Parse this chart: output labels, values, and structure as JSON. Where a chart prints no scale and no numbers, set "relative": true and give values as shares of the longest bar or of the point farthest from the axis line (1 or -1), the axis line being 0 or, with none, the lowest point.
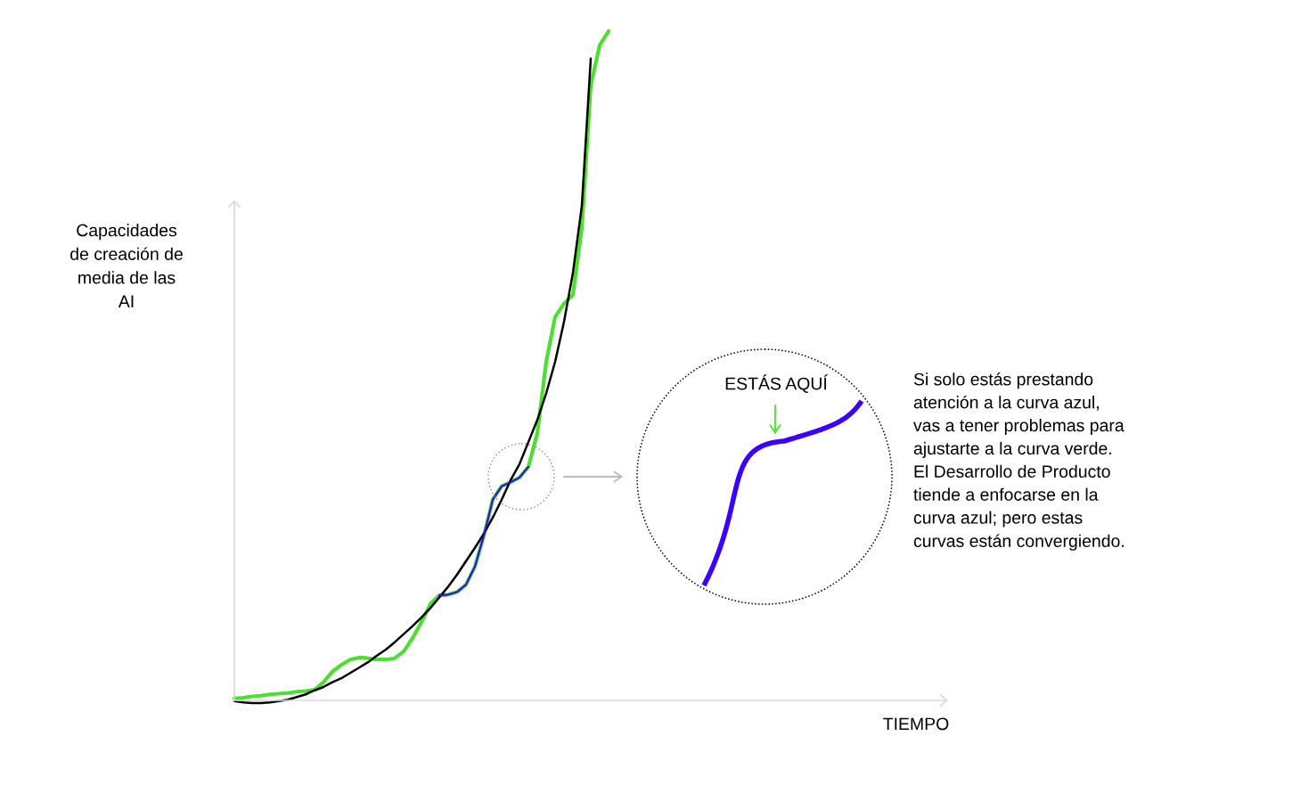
{
  "chart_data": {
    "type": "line",
    "relative": true,
    "ylabel": "Capacidades\nde creación de\nmedia de las\nAI",
    "xlabel": "TIEMPO",
    "annotations": [
      "ESTÁS AQUÍ",
      "Si solo estás prestando\natención a la curva azul,\nvas a tener problemas para\najustarte a la curva verde.\nEl Desarrollo de Producto\ntiende a enfocarse en la\ncurva azul; pero estas\ncurvas están convergiendo."
    ],
    "categories": [
      null,
      null,
      null,
      null,
      null,
      null,
      null,
      null,
      null,
      null,
      null,
      null,
      null,
      null,
      null,
      null,
      null,
      null,
      null,
      null,
      null,
      null,
      null,
      null,
      null,
      null,
      null,
      null,
      null,
      null,
      null,
      null,
      null,
      null,
      null,
      null,
      null,
      null,
      null,
      null,
      null,
      null,
      null,
      null,
      null,
      null,
      null,
      null,
      null,
      null,
      null,
      null,
      null,
      null,
      null,
      null,
      null,
      null,
      null,
      null,
      null,
      null,
      null,
      null,
      null,
      null,
      null,
      null,
      null,
      null,
      null,
      null,
      null,
      null,
      null,
      null,
      null,
      null,
      null,
      null,
      null
    ],
    "series": [
      {
        "color": "#4cdf2f",
        "values": [
          0.003,
          0.004,
          0.006,
          0.007,
          0.009,
          0.01,
          0.011,
          0.013,
          0.014,
          0.016,
          0.027,
          0.043,
          0.053,
          0.061,
          0.064,
          0.063,
          0.061,
          0.061,
          0.063,
          0.073,
          0.093,
          0.117,
          0.144,
          0.157,
          0.158,
          0.162,
          0.173,
          0.2,
          0.246,
          0.3,
          0.32,
          0.326,
          0.333,
          0.349,
          0.399,
          0.506,
          0.573,
          0.593,
          0.606,
          0.706,
          0.919,
          0.979,
          1.0,
          null,
          null,
          null,
          null,
          null,
          null,
          null,
          null,
          null,
          null,
          null,
          null,
          null,
          null,
          null,
          null,
          null,
          null,
          null,
          null,
          null,
          null,
          null,
          null,
          null,
          null,
          null,
          null,
          null,
          null,
          null,
          null,
          null,
          null,
          null,
          null,
          null,
          null
        ]
      },
      {
        "color": "#000000",
        "values": [
          -0.001,
          -0.003,
          -0.004,
          -0.004,
          -0.003,
          -0.001,
          0.001,
          0.005,
          0.009,
          0.015,
          0.02,
          0.027,
          0.033,
          0.041,
          0.049,
          0.057,
          0.067,
          0.076,
          0.087,
          0.099,
          0.111,
          0.124,
          0.138,
          0.154,
          0.17,
          0.188,
          0.208,
          0.228,
          0.249,
          0.273,
          0.3,
          0.329,
          0.353,
          0.386,
          0.419,
          0.459,
          0.506,
          0.566,
          0.639,
          0.739,
          0.959,
          null,
          null,
          null,
          null,
          null,
          null,
          null,
          null,
          null,
          null,
          null,
          null,
          null,
          null,
          null,
          null,
          null,
          null,
          null,
          null,
          null,
          null,
          null,
          null,
          null,
          null,
          null,
          null,
          null,
          null,
          null,
          null,
          null,
          null,
          null,
          null,
          null,
          null,
          null,
          null
        ]
      },
      {
        "color": "#3b00ff",
        "values": [
          null,
          null,
          null,
          null,
          null,
          null,
          null,
          null,
          null,
          null,
          null,
          null,
          null,
          null,
          null,
          null,
          null,
          null,
          null,
          null,
          null,
          null,
          null,
          0.157,
          0.158,
          0.162,
          0.173,
          0.2,
          0.246,
          0.3,
          0.32,
          0.326,
          0.333,
          0.349,
          null,
          null,
          null,
          null,
          null,
          null,
          null,
          null,
          null,
          null,
          null,
          null,
          null,
          null,
          null,
          null,
          null,
          null,
          null,
          null,
          null,
          null,
          null,
          null,
          null,
          null,
          null,
          null,
          null,
          null,
          null,
          null,
          null,
          null,
          null,
          null,
          null,
          null,
          null,
          null,
          null,
          null,
          null,
          null,
          null,
          null,
          null
        ]
      }
    ]
  }
}
